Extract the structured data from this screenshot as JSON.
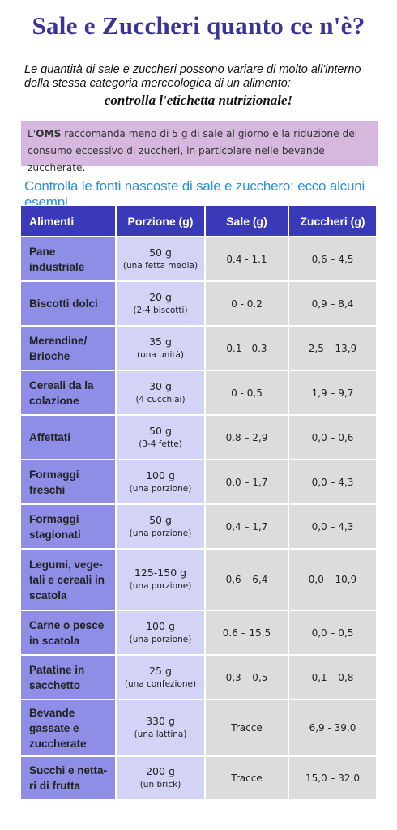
{
  "title": "Sale e Zuccheri quanto ce n'è?",
  "intro": "Le quantità di sale e zuccheri possono variare di molto all'interno della stessa categoria merceologica di un alimento:",
  "intro_strong": "controlla l'etichetta nutrizionale!",
  "oms": {
    "prefix": "L'",
    "org": "OMS",
    "text": " raccomanda meno di 5 g di sale al giorno e la riduzione del consumo eccessivo di zuccheri, in particolare nelle bevande zuccherate."
  },
  "subtitle": "Controlla le fonti nascoste di sale e zucchero: ecco alcuni esempi",
  "table": {
    "headers": [
      "Alimenti",
      "Porzione (g)",
      "Sale (g)",
      "Zuccheri (g)"
    ],
    "rows": [
      {
        "name": [
          "Pane",
          "industriale"
        ],
        "portion": "50 g",
        "note": "(una fetta media)",
        "sale": "0.4 - 1.1",
        "zuccheri": "0,6 – 4,5"
      },
      {
        "name": [
          "Biscotti dolci"
        ],
        "portion": "20 g",
        "note": "(2-4 biscotti)",
        "sale": "0 - 0.2",
        "zuccheri": "0,9 – 8,4"
      },
      {
        "name": [
          "Merendine/",
          "Brioche"
        ],
        "portion": "35 g",
        "note": "(una unità)",
        "sale": "0.1 - 0.3",
        "zuccheri": "2,5 – 13,9"
      },
      {
        "name": [
          "Cereali da la",
          "colazione"
        ],
        "portion": "30 g",
        "note": "(4 cucchiai)",
        "sale": "0 - 0,5",
        "zuccheri": "1,9 – 9,7"
      },
      {
        "name": [
          "Affettati"
        ],
        "portion": "50 g",
        "note": "(3-4 fette)",
        "sale": "0.8 – 2,9",
        "zuccheri": "0,0 – 0,6"
      },
      {
        "name": [
          "Formaggi",
          "freschi"
        ],
        "portion": "100 g",
        "note": "(una porzione)",
        "sale": "0,0 – 1,7",
        "zuccheri": "0,0 – 4,3"
      },
      {
        "name": [
          "Formaggi",
          "stagionati"
        ],
        "portion": "50 g",
        "note": "(una porzione)",
        "sale": "0,4 – 1,7",
        "zuccheri": "0,0 – 4,3"
      },
      {
        "name": [
          "Legumi, vege-",
          "tali e cereali in",
          "scatola"
        ],
        "portion": "125-150 g",
        "note": "(una porzione)",
        "sale": "0,6 – 6,4",
        "zuccheri": "0,0 – 10,9"
      },
      {
        "name": [
          "Carne o pesce",
          "in scatola"
        ],
        "portion": "100 g",
        "note": "(una porzione)",
        "sale": "0.6 – 15,5",
        "zuccheri": "0,0 – 0,5"
      },
      {
        "name": [
          "Patatine in",
          "sacchetto"
        ],
        "portion": "25 g",
        "note": "(una confezione)",
        "sale": "0,3 – 0,5",
        "zuccheri": "0,1 – 0,8"
      },
      {
        "name": [
          "Bevande",
          "gassate e",
          "zuccherate"
        ],
        "portion": "330 g",
        "note": "(una lattina)",
        "sale": "Tracce",
        "zuccheri": "6,9 - 39,0"
      },
      {
        "name": [
          "Succhi e netta-",
          "ri di frutta"
        ],
        "portion": "200 g",
        "note": "(un brick)",
        "sale": "Tracce",
        "zuccheri": "15,0 – 32,0"
      }
    ]
  }
}
